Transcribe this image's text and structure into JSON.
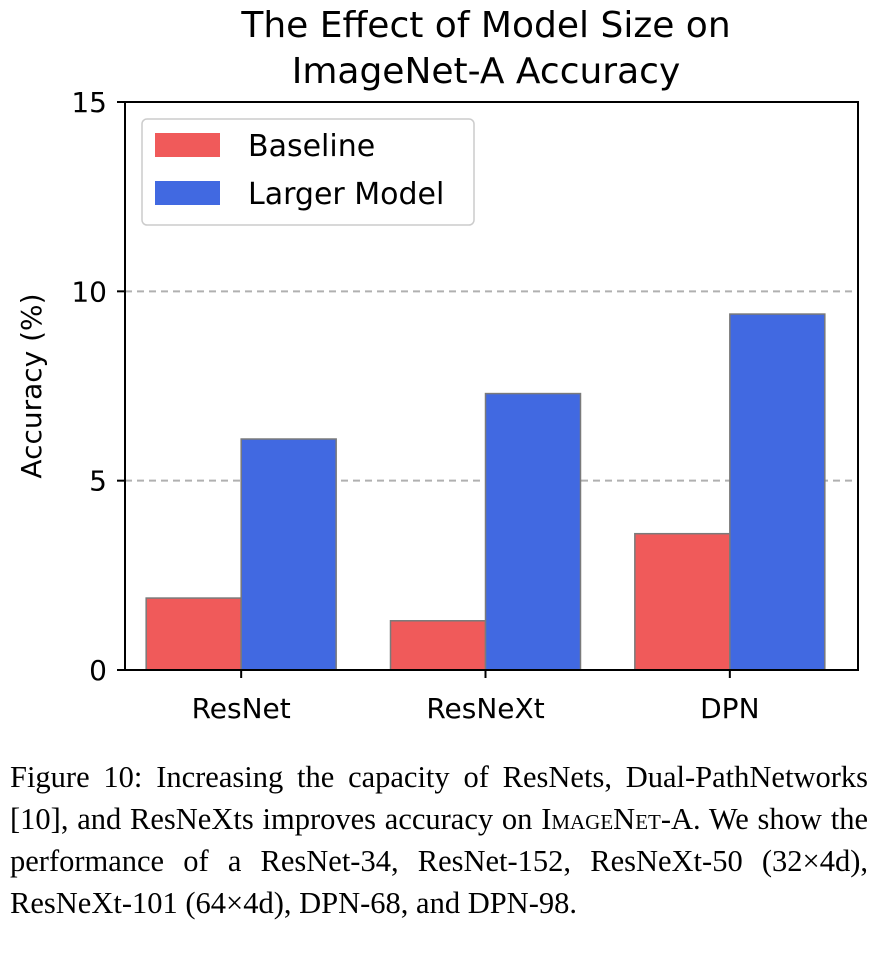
{
  "chart_data": {
    "type": "bar",
    "title_lines": [
      "The Effect of Model Size on",
      "ImageNet-A Accuracy"
    ],
    "xlabel": "",
    "ylabel": "Accuracy (%)",
    "categories": [
      "ResNet",
      "ResNeXt",
      "DPN"
    ],
    "series": [
      {
        "name": "Baseline",
        "color": "#f05a5a",
        "values": [
          1.9,
          1.3,
          3.6
        ]
      },
      {
        "name": "Larger Model",
        "color": "#4169e1",
        "values": [
          6.1,
          7.3,
          9.4
        ]
      }
    ],
    "ylim": [
      0,
      15
    ],
    "yticks": [
      "0",
      "5",
      "10",
      "15"
    ],
    "grid": "horizontal dashed",
    "legend_position": "top-left"
  },
  "caption": {
    "part1": "Figure 10:  Increasing the capacity of ResNets, Dual-PathNetworks [10], and ResNeXts improves accuracy on ",
    "dataset_name": "ImageNet-A",
    "part2": ". We show the performance of a ResNet-34, ResNet-152, ResNeXt-50 (32×4d), ResNeXt-101 (64×4d), DPN-68, and DPN-98."
  }
}
